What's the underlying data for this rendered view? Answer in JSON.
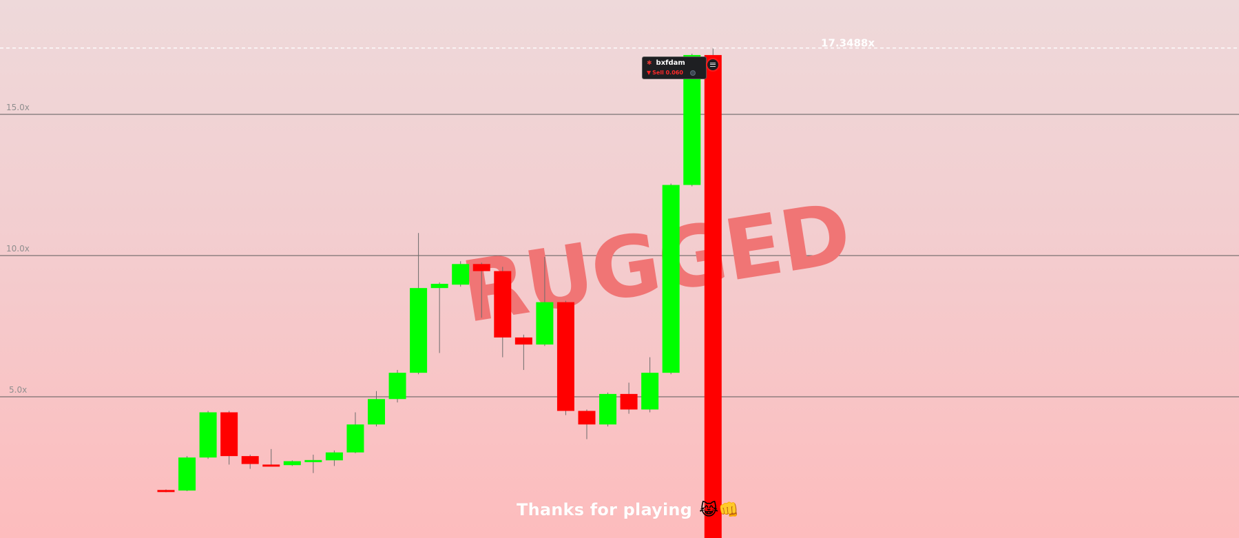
{
  "chart_data": {
    "type": "candlestick",
    "title": "",
    "xlabel": "",
    "ylabel": "",
    "y_scale": "linear",
    "ylim": [
      0.8,
      18.6
    ],
    "yticks": [
      {
        "value": 5,
        "label": "5.0x"
      },
      {
        "value": 10,
        "label": "10.0x"
      },
      {
        "value": 15,
        "label": "15.0x"
      }
    ],
    "grid": true,
    "peak": {
      "value": 17.3488,
      "label": "17.3488x"
    },
    "candles": [
      {
        "o": 1.7,
        "c": 1.65,
        "h": 1.72,
        "l": 1.62
      },
      {
        "o": 1.68,
        "c": 2.85,
        "h": 2.9,
        "l": 1.66
      },
      {
        "o": 2.85,
        "c": 4.45,
        "h": 4.5,
        "l": 2.8
      },
      {
        "o": 4.45,
        "c": 2.9,
        "h": 4.5,
        "l": 2.6
      },
      {
        "o": 2.9,
        "c": 2.62,
        "h": 2.95,
        "l": 2.45
      },
      {
        "o": 2.6,
        "c": 2.57,
        "h": 3.15,
        "l": 2.55
      },
      {
        "o": 2.58,
        "c": 2.72,
        "h": 2.75,
        "l": 2.55
      },
      {
        "o": 2.72,
        "c": 2.76,
        "h": 2.95,
        "l": 2.3
      },
      {
        "o": 2.75,
        "c": 3.03,
        "h": 3.1,
        "l": 2.55
      },
      {
        "o": 3.03,
        "c": 4.02,
        "h": 4.45,
        "l": 3.0
      },
      {
        "o": 4.02,
        "c": 4.92,
        "h": 5.2,
        "l": 3.95
      },
      {
        "o": 4.92,
        "c": 5.85,
        "h": 5.95,
        "l": 4.8
      },
      {
        "o": 5.85,
        "c": 8.85,
        "h": 10.8,
        "l": 5.8
      },
      {
        "o": 8.85,
        "c": 9.0,
        "h": 9.05,
        "l": 6.55
      },
      {
        "o": 8.97,
        "c": 9.7,
        "h": 9.8,
        "l": 8.9
      },
      {
        "o": 9.7,
        "c": 9.45,
        "h": 9.75,
        "l": 7.8
      },
      {
        "o": 9.45,
        "c": 7.1,
        "h": 9.6,
        "l": 6.4
      },
      {
        "o": 7.1,
        "c": 6.85,
        "h": 7.2,
        "l": 5.95
      },
      {
        "o": 6.85,
        "c": 8.35,
        "h": 9.95,
        "l": 6.8
      },
      {
        "o": 8.35,
        "c": 4.5,
        "h": 8.4,
        "l": 4.35
      },
      {
        "o": 4.5,
        "c": 4.02,
        "h": 4.55,
        "l": 3.5
      },
      {
        "o": 4.02,
        "c": 5.1,
        "h": 5.15,
        "l": 3.95
      },
      {
        "o": 5.1,
        "c": 4.55,
        "h": 5.5,
        "l": 4.4
      },
      {
        "o": 4.55,
        "c": 5.85,
        "h": 6.4,
        "l": 4.45
      },
      {
        "o": 5.85,
        "c": 12.5,
        "h": 12.55,
        "l": 5.8
      },
      {
        "o": 12.5,
        "c": 17.1,
        "h": 17.15,
        "l": 12.45
      },
      {
        "o": 17.1,
        "c": 0.0,
        "h": 17.35,
        "l": 0.0
      }
    ]
  },
  "overlay": {
    "rugged_text": "RUGGED",
    "rugged_color": "#f07575",
    "footer_text": "Thanks for playing",
    "footer_emoji": "😹👊"
  },
  "trade": {
    "username": "bxfdam",
    "action": "Sell 0.060",
    "user_icon": "red-beast-icon",
    "action_icon": "down-arrow-icon"
  },
  "colors": {
    "up": "#00ff00",
    "down": "#ff0000",
    "grid": "#5a5a5a",
    "tick_label": "#8e8e8e",
    "peak_line": "#ffffff"
  }
}
